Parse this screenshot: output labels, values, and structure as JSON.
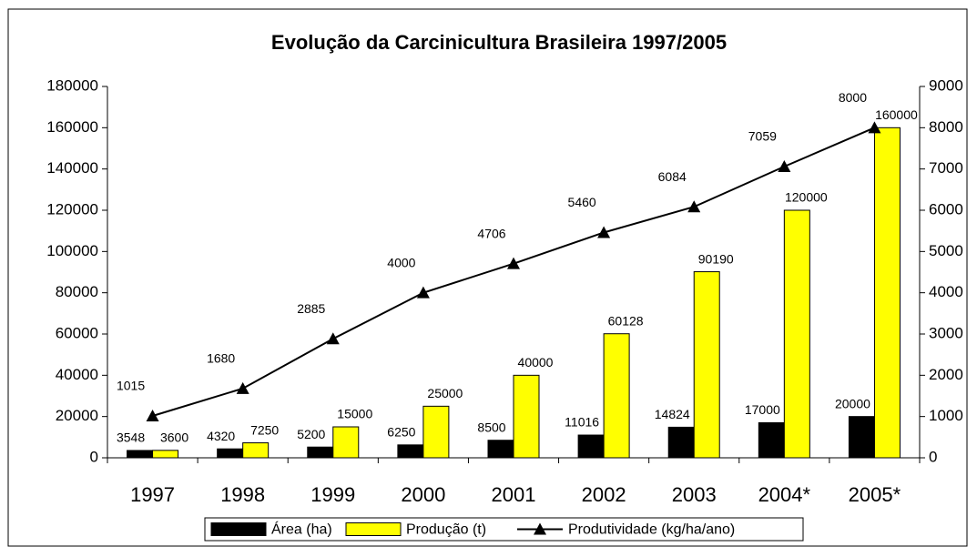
{
  "chart_data": {
    "type": "bar_line",
    "title": "Evolução da Carcinicultura Brasileira 1997/2005",
    "categories": [
      "1997",
      "1998",
      "1999",
      "2000",
      "2001",
      "2002",
      "2003",
      "2004*",
      "2005*"
    ],
    "series": [
      {
        "name": "Área (ha)",
        "color": "#000000",
        "type": "bar",
        "values": [
          3548,
          4320,
          5200,
          6250,
          8500,
          11016,
          14824,
          17000,
          20000
        ]
      },
      {
        "name": "Produção (t)",
        "color": "#ffff00",
        "type": "bar",
        "values": [
          3600,
          7250,
          15000,
          25000,
          40000,
          60128,
          90190,
          120000,
          160000
        ]
      },
      {
        "name": "Produtividade (kg/ha/ano)",
        "color": "#000000",
        "type": "line",
        "axis": "y2",
        "values": [
          1015,
          1680,
          2885,
          4000,
          4706,
          5460,
          6084,
          7059,
          8000
        ]
      }
    ],
    "ylim": [
      0,
      180000
    ],
    "yticks": [
      0,
      20000,
      40000,
      60000,
      80000,
      100000,
      120000,
      140000,
      160000,
      180000
    ],
    "y2lim": [
      0,
      9000
    ],
    "y2ticks": [
      0,
      1000,
      2000,
      3000,
      4000,
      5000,
      6000,
      7000,
      8000,
      9000
    ],
    "legend": "bottom"
  }
}
